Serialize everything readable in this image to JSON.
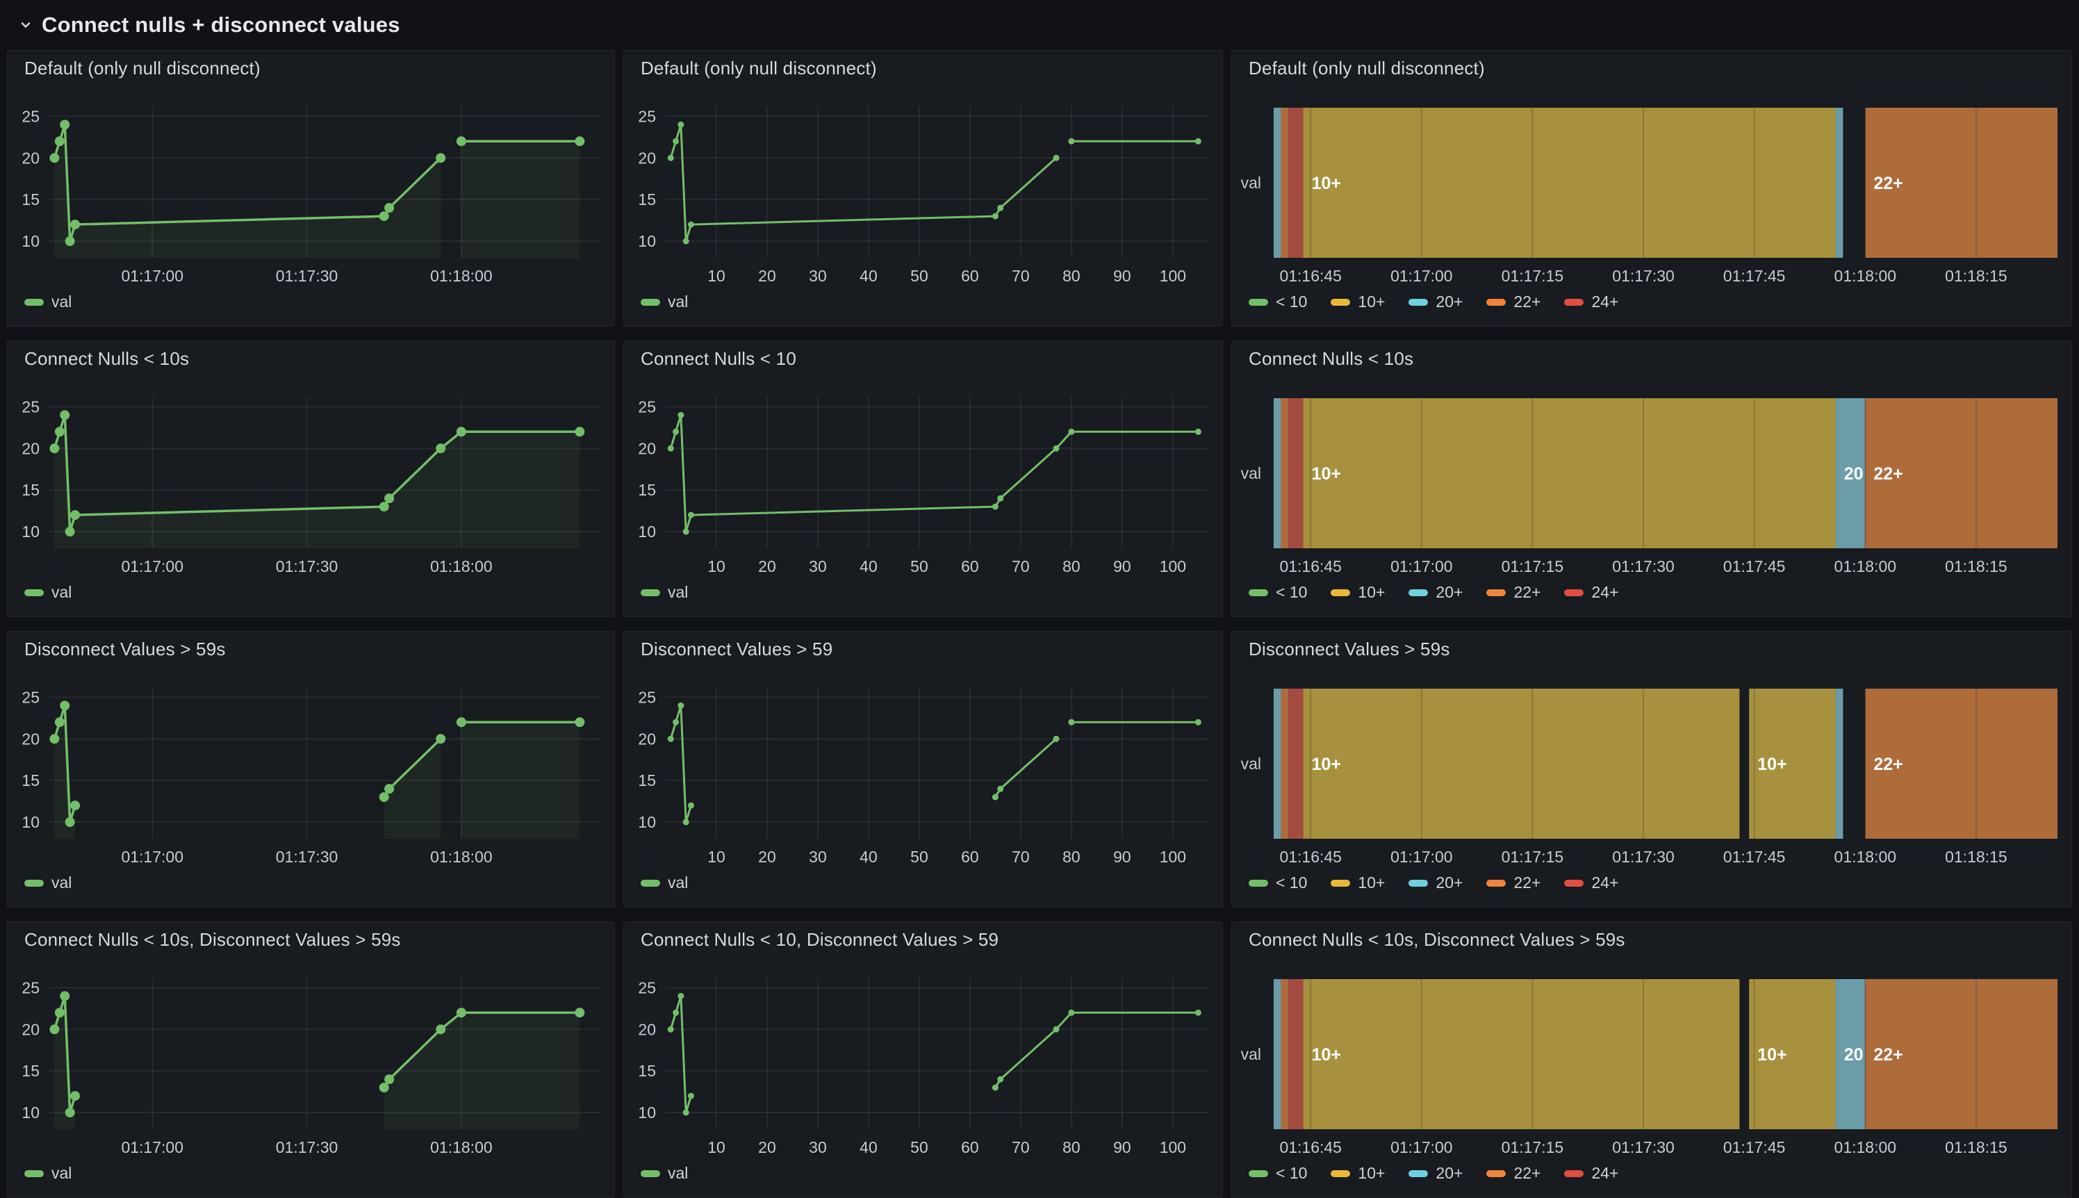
{
  "row_header": {
    "title": "Connect nulls + disconnect values",
    "collapse_icon": "chevron-down-icon"
  },
  "colors": {
    "page_bg": "#111217",
    "panel_bg": "#181b1f",
    "panel_border": "#25272e",
    "title_text": "#d8d9da",
    "tick_text": "#c9cad4",
    "grid_line": "rgba(204,204,220,0.09)",
    "series_green": "#73BF69",
    "series_fill": "rgba(115,191,105,0.08)",
    "state_label_text": "#ffffff",
    "regions": {
      "yellow": "#A8913E",
      "blue": "#6B9DA9",
      "orange": "#AE6C3B",
      "red": "#A34A41"
    }
  },
  "timeline_legend": [
    {
      "label": "< 10",
      "color": "#73BF69"
    },
    {
      "label": "10+",
      "color": "#EAB839"
    },
    {
      "label": "20+",
      "color": "#6ED0E0"
    },
    {
      "label": "22+",
      "color": "#EF843C"
    },
    {
      "label": "24+",
      "color": "#E24D42"
    }
  ],
  "chart_data": {
    "axes": {
      "time": {
        "domain": [
          0,
          107
        ],
        "ticks": [
          {
            "v": 20,
            "label": "01:17:00"
          },
          {
            "v": 50,
            "label": "01:17:30"
          },
          {
            "v": 80,
            "label": "01:18:00"
          }
        ]
      },
      "numeric": {
        "domain": [
          0,
          107
        ],
        "ticks": [
          {
            "v": 10,
            "label": "10"
          },
          {
            "v": 20,
            "label": "20"
          },
          {
            "v": 30,
            "label": "30"
          },
          {
            "v": 40,
            "label": "40"
          },
          {
            "v": 50,
            "label": "50"
          },
          {
            "v": 60,
            "label": "60"
          },
          {
            "v": 70,
            "label": "70"
          },
          {
            "v": 80,
            "label": "80"
          },
          {
            "v": 90,
            "label": "90"
          },
          {
            "v": 100,
            "label": "100"
          }
        ]
      },
      "timeline": {
        "domain": [
          0,
          106
        ],
        "ticks": [
          {
            "v": 5,
            "label": "01:16:45"
          },
          {
            "v": 20,
            "label": "01:17:00"
          },
          {
            "v": 35,
            "label": "01:17:15"
          },
          {
            "v": 50,
            "label": "01:17:30"
          },
          {
            "v": 65,
            "label": "01:17:45"
          },
          {
            "v": 80,
            "label": "01:18:00"
          },
          {
            "v": 95,
            "label": "01:18:15"
          }
        ]
      },
      "value": {
        "domain": [
          8,
          26.2
        ],
        "ticks": [
          10,
          15,
          20,
          25
        ]
      }
    },
    "line_series": {
      "name": "val",
      "x_time": [
        1,
        2,
        3,
        4,
        5,
        65,
        66,
        76,
        80,
        103
      ],
      "x_numeric": [
        1,
        2,
        3,
        4,
        5,
        65,
        66,
        77,
        80,
        105
      ],
      "y": [
        20,
        22,
        24,
        10,
        12,
        13,
        14,
        20,
        22,
        22
      ]
    },
    "segments": {
      "default": [
        [
          0,
          1,
          2,
          3,
          4,
          5,
          6,
          7
        ],
        [
          8,
          9
        ]
      ],
      "connect_nulls": [
        [
          0,
          1,
          2,
          3,
          4,
          5,
          6,
          7,
          8,
          9
        ]
      ],
      "disconnect_values": [
        [
          0,
          1,
          2,
          3,
          4
        ],
        [
          5,
          6,
          7
        ],
        [
          8,
          9
        ]
      ],
      "both": [
        [
          0,
          1,
          2,
          3,
          4
        ],
        [
          5,
          6,
          7,
          8,
          9
        ]
      ]
    },
    "timeline_states": {
      "default": [
        [
          0,
          1,
          "blue",
          ""
        ],
        [
          1,
          2,
          "orange",
          ""
        ],
        [
          2,
          4,
          "red",
          ""
        ],
        [
          4,
          76,
          "yellow",
          "10+"
        ],
        [
          76,
          77,
          "blue",
          ""
        ],
        [
          80,
          106,
          "orange",
          "22+"
        ]
      ],
      "connect_nulls": [
        [
          0,
          1,
          "blue",
          ""
        ],
        [
          1,
          2,
          "orange",
          ""
        ],
        [
          2,
          4,
          "red",
          ""
        ],
        [
          4,
          76,
          "yellow",
          "10+"
        ],
        [
          76,
          80,
          "blue",
          "20"
        ],
        [
          80,
          106,
          "orange",
          "22+"
        ]
      ],
      "disconnect_values": [
        [
          0,
          1,
          "blue",
          ""
        ],
        [
          1,
          2,
          "orange",
          ""
        ],
        [
          2,
          4,
          "red",
          ""
        ],
        [
          4,
          63,
          "yellow",
          "10+"
        ],
        [
          64.3,
          76,
          "yellow",
          "10+"
        ],
        [
          76,
          77,
          "blue",
          ""
        ],
        [
          80,
          106,
          "orange",
          "22+"
        ]
      ],
      "both": [
        [
          0,
          1,
          "blue",
          ""
        ],
        [
          1,
          2,
          "orange",
          ""
        ],
        [
          2,
          4,
          "red",
          ""
        ],
        [
          4,
          63,
          "yellow",
          "10+"
        ],
        [
          64.3,
          76,
          "yellow",
          "10+"
        ],
        [
          76,
          80,
          "blue",
          "20"
        ],
        [
          80,
          106,
          "orange",
          "22+"
        ]
      ]
    },
    "panels": [
      {
        "title": "Default (only null disconnect)",
        "type": "timeseries",
        "x_axis": "time",
        "x_key": "x_time",
        "segments": "default",
        "fill": true
      },
      {
        "title": "Default (only null disconnect)",
        "type": "xy",
        "x_axis": "numeric",
        "x_key": "x_numeric",
        "segments": "default",
        "fill": false
      },
      {
        "title": "Default (only null disconnect)",
        "type": "state-timeline",
        "states": "default"
      },
      {
        "title": "Connect Nulls < 10s",
        "type": "timeseries",
        "x_axis": "time",
        "x_key": "x_time",
        "segments": "connect_nulls",
        "fill": true
      },
      {
        "title": "Connect Nulls < 10",
        "type": "xy",
        "x_axis": "numeric",
        "x_key": "x_numeric",
        "segments": "connect_nulls",
        "fill": false
      },
      {
        "title": "Connect Nulls < 10s",
        "type": "state-timeline",
        "states": "connect_nulls"
      },
      {
        "title": "Disconnect Values > 59s",
        "type": "timeseries",
        "x_axis": "time",
        "x_key": "x_time",
        "segments": "disconnect_values",
        "fill": true
      },
      {
        "title": "Disconnect Values > 59",
        "type": "xy",
        "x_axis": "numeric",
        "x_key": "x_numeric",
        "segments": "disconnect_values",
        "fill": false
      },
      {
        "title": "Disconnect Values > 59s",
        "type": "state-timeline",
        "states": "disconnect_values"
      },
      {
        "title": "Connect Nulls < 10s, Disconnect Values > 59s",
        "type": "timeseries",
        "x_axis": "time",
        "x_key": "x_time",
        "segments": "both",
        "fill": true
      },
      {
        "title": "Connect Nulls < 10, Disconnect Values > 59",
        "type": "xy",
        "x_axis": "numeric",
        "x_key": "x_numeric",
        "segments": "both",
        "fill": false
      },
      {
        "title": "Connect Nulls < 10s, Disconnect Values > 59s",
        "type": "state-timeline",
        "states": "both"
      }
    ],
    "y_category_label": "val"
  }
}
